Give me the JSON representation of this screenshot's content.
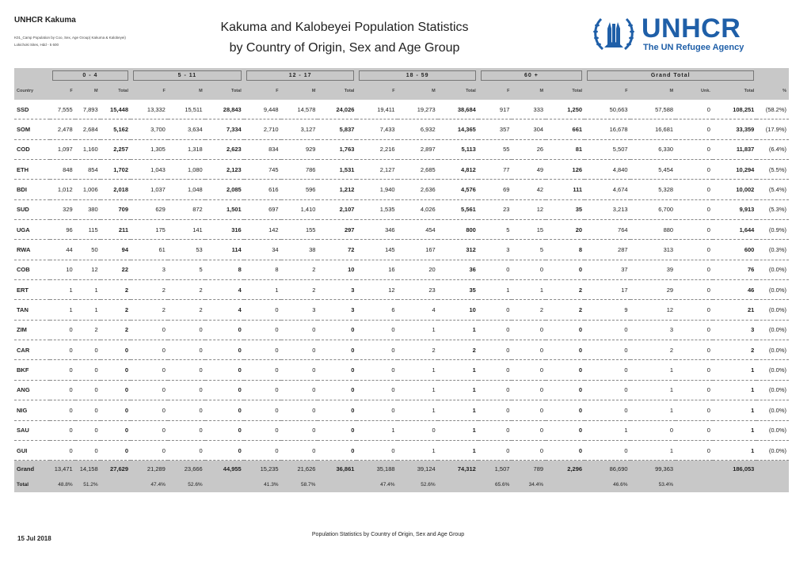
{
  "header": {
    "org": "UNHCR Kakuma",
    "report_id": "K01_Camp Population by Coo, Sex, Age Group( Kakuma & Kalobeyei)",
    "location_line": "Lokichoki Sites, Hdd - 5 600",
    "title_line1": "Kakuma and Kalobeyei Population Statistics",
    "title_line2": "by Country of Origin, Sex and Age Group"
  },
  "logo": {
    "wordmark": "UNHCR",
    "tagline": "The UN Refugee Agency",
    "icon": "unhcr-hands-laurel-icon",
    "color": "#1f5fa8"
  },
  "table": {
    "groups": [
      "0 - 4",
      "5 - 11",
      "12 - 17",
      "18 - 59",
      "60 +",
      "Grand Total"
    ],
    "columns": [
      "Country",
      "F",
      "M",
      "Total",
      "F",
      "M",
      "Total",
      "F",
      "M",
      "Total",
      "F",
      "M",
      "Total",
      "F",
      "M",
      "Total",
      "F",
      "M",
      "Unk.",
      "Total",
      "%"
    ],
    "rows": [
      [
        "SSD",
        "7,555",
        "7,893",
        "15,448",
        "13,332",
        "15,511",
        "28,843",
        "9,448",
        "14,578",
        "24,026",
        "19,411",
        "19,273",
        "38,684",
        "917",
        "333",
        "1,250",
        "50,663",
        "57,588",
        "0",
        "108,251",
        "(58.2%)"
      ],
      [
        "SOM",
        "2,478",
        "2,684",
        "5,162",
        "3,700",
        "3,634",
        "7,334",
        "2,710",
        "3,127",
        "5,837",
        "7,433",
        "6,932",
        "14,365",
        "357",
        "304",
        "661",
        "16,678",
        "16,681",
        "0",
        "33,359",
        "(17.9%)"
      ],
      [
        "COD",
        "1,097",
        "1,160",
        "2,257",
        "1,305",
        "1,318",
        "2,623",
        "834",
        "929",
        "1,763",
        "2,216",
        "2,897",
        "5,113",
        "55",
        "26",
        "81",
        "5,507",
        "6,330",
        "0",
        "11,837",
        "(6.4%)"
      ],
      [
        "ETH",
        "848",
        "854",
        "1,702",
        "1,043",
        "1,080",
        "2,123",
        "745",
        "786",
        "1,531",
        "2,127",
        "2,685",
        "4,812",
        "77",
        "49",
        "126",
        "4,840",
        "5,454",
        "0",
        "10,294",
        "(5.5%)"
      ],
      [
        "BDI",
        "1,012",
        "1,006",
        "2,018",
        "1,037",
        "1,048",
        "2,085",
        "616",
        "596",
        "1,212",
        "1,940",
        "2,636",
        "4,576",
        "69",
        "42",
        "111",
        "4,674",
        "5,328",
        "0",
        "10,002",
        "(5.4%)"
      ],
      [
        "SUD",
        "329",
        "380",
        "709",
        "629",
        "872",
        "1,501",
        "697",
        "1,410",
        "2,107",
        "1,535",
        "4,026",
        "5,561",
        "23",
        "12",
        "35",
        "3,213",
        "6,700",
        "0",
        "9,913",
        "(5.3%)"
      ],
      [
        "UGA",
        "96",
        "115",
        "211",
        "175",
        "141",
        "316",
        "142",
        "155",
        "297",
        "346",
        "454",
        "800",
        "5",
        "15",
        "20",
        "764",
        "880",
        "0",
        "1,644",
        "(0.9%)"
      ],
      [
        "RWA",
        "44",
        "50",
        "94",
        "61",
        "53",
        "114",
        "34",
        "38",
        "72",
        "145",
        "167",
        "312",
        "3",
        "5",
        "8",
        "287",
        "313",
        "0",
        "600",
        "(0.3%)"
      ],
      [
        "COB",
        "10",
        "12",
        "22",
        "3",
        "5",
        "8",
        "8",
        "2",
        "10",
        "16",
        "20",
        "36",
        "0",
        "0",
        "0",
        "37",
        "39",
        "0",
        "76",
        "(0.0%)"
      ],
      [
        "ERT",
        "1",
        "1",
        "2",
        "2",
        "2",
        "4",
        "1",
        "2",
        "3",
        "12",
        "23",
        "35",
        "1",
        "1",
        "2",
        "17",
        "29",
        "0",
        "46",
        "(0.0%)"
      ],
      [
        "TAN",
        "1",
        "1",
        "2",
        "2",
        "2",
        "4",
        "0",
        "3",
        "3",
        "6",
        "4",
        "10",
        "0",
        "2",
        "2",
        "9",
        "12",
        "0",
        "21",
        "(0.0%)"
      ],
      [
        "ZIM",
        "0",
        "2",
        "2",
        "0",
        "0",
        "0",
        "0",
        "0",
        "0",
        "0",
        "1",
        "1",
        "0",
        "0",
        "0",
        "0",
        "3",
        "0",
        "3",
        "(0.0%)"
      ],
      [
        "CAR",
        "0",
        "0",
        "0",
        "0",
        "0",
        "0",
        "0",
        "0",
        "0",
        "0",
        "2",
        "2",
        "0",
        "0",
        "0",
        "0",
        "2",
        "0",
        "2",
        "(0.0%)"
      ],
      [
        "BKF",
        "0",
        "0",
        "0",
        "0",
        "0",
        "0",
        "0",
        "0",
        "0",
        "0",
        "1",
        "1",
        "0",
        "0",
        "0",
        "0",
        "1",
        "0",
        "1",
        "(0.0%)"
      ],
      [
        "ANG",
        "0",
        "0",
        "0",
        "0",
        "0",
        "0",
        "0",
        "0",
        "0",
        "0",
        "1",
        "1",
        "0",
        "0",
        "0",
        "0",
        "1",
        "0",
        "1",
        "(0.0%)"
      ],
      [
        "NIG",
        "0",
        "0",
        "0",
        "0",
        "0",
        "0",
        "0",
        "0",
        "0",
        "0",
        "1",
        "1",
        "0",
        "0",
        "0",
        "0",
        "1",
        "0",
        "1",
        "(0.0%)"
      ],
      [
        "SAU",
        "0",
        "0",
        "0",
        "0",
        "0",
        "0",
        "0",
        "0",
        "0",
        "1",
        "0",
        "1",
        "0",
        "0",
        "0",
        "1",
        "0",
        "0",
        "1",
        "(0.0%)"
      ],
      [
        "GUI",
        "0",
        "0",
        "0",
        "0",
        "0",
        "0",
        "0",
        "0",
        "0",
        "0",
        "1",
        "1",
        "0",
        "0",
        "0",
        "0",
        "1",
        "0",
        "1",
        "(0.0%)"
      ]
    ],
    "grand_total": {
      "label_line1": "Grand",
      "label_line2": "Total",
      "values": [
        "13,471",
        "14,158",
        "27,629",
        "21,289",
        "23,666",
        "44,955",
        "15,235",
        "21,626",
        "36,861",
        "35,188",
        "39,124",
        "74,312",
        "1,507",
        "789",
        "2,296",
        "86,690",
        "99,363",
        "",
        "186,053",
        ""
      ],
      "percents": [
        "48.8%",
        "51.2%",
        "",
        "47.4%",
        "52.6%",
        "",
        "41.3%",
        "58.7%",
        "",
        "47.4%",
        "52.6%",
        "",
        "65.6%",
        "34.4%",
        "",
        "46.6%",
        "53.4%",
        "",
        "",
        ""
      ]
    }
  },
  "footer": {
    "date": "15 Jul 2018",
    "caption": "Population Statistics by Country of Origin, Sex and Age Group"
  }
}
